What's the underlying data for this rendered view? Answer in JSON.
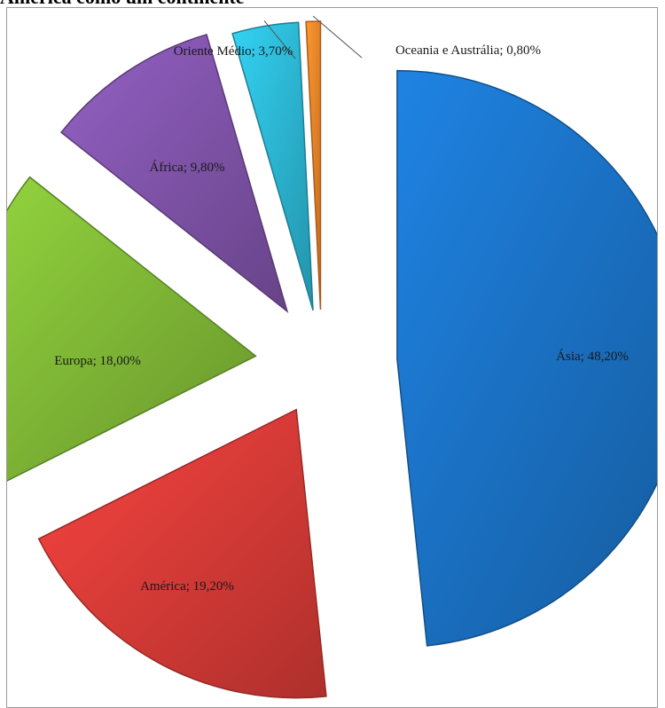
{
  "heading": "América como um continente",
  "chart_data": {
    "type": "pie",
    "title": "",
    "exploded": true,
    "slices": [
      {
        "label": "Ásia; 48,20%",
        "name": "Ásia",
        "value": 48.2,
        "color": "#1a6fc0"
      },
      {
        "label": "América; 19,20%",
        "name": "América",
        "value": 19.2,
        "color": "#d43a36"
      },
      {
        "label": "Europa; 18,00%",
        "name": "Europa",
        "value": 18.0,
        "color": "#7db535"
      },
      {
        "label": "África; 9,80%",
        "name": "África",
        "value": 9.8,
        "color": "#7d52a6"
      },
      {
        "label": "Oriente Médio; 3,70%",
        "name": "Oriente Médio",
        "value": 3.7,
        "color": "#2bb3cf"
      },
      {
        "label": "Oceania e Austrália; 0,80%",
        "name": "Oceania e Austrália",
        "value": 0.8,
        "color": "#ee8228"
      }
    ]
  }
}
